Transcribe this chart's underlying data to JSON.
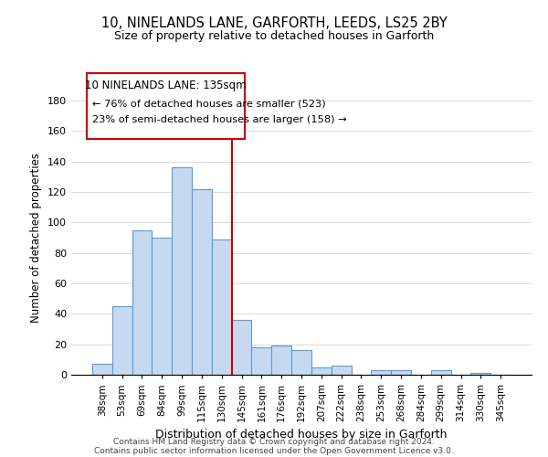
{
  "title": "10, NINELANDS LANE, GARFORTH, LEEDS, LS25 2BY",
  "subtitle": "Size of property relative to detached houses in Garforth",
  "xlabel": "Distribution of detached houses by size in Garforth",
  "ylabel": "Number of detached properties",
  "bar_labels": [
    "38sqm",
    "53sqm",
    "69sqm",
    "84sqm",
    "99sqm",
    "115sqm",
    "130sqm",
    "145sqm",
    "161sqm",
    "176sqm",
    "192sqm",
    "207sqm",
    "222sqm",
    "238sqm",
    "253sqm",
    "268sqm",
    "284sqm",
    "299sqm",
    "314sqm",
    "330sqm",
    "345sqm"
  ],
  "bar_values": [
    7,
    45,
    95,
    90,
    136,
    122,
    89,
    36,
    18,
    19,
    16,
    5,
    6,
    0,
    3,
    3,
    0,
    3,
    0,
    1,
    0
  ],
  "bar_color": "#c6d9f0",
  "bar_edge_color": "#5b9bd5",
  "vline_x": 6.5,
  "vline_color": "#cc0000",
  "ylim": [
    0,
    180
  ],
  "yticks": [
    0,
    20,
    40,
    60,
    80,
    100,
    120,
    140,
    160,
    180
  ],
  "annotation_title": "10 NINELANDS LANE: 135sqm",
  "annotation_line1": "← 76% of detached houses are smaller (523)",
  "annotation_line2": "23% of semi-detached houses are larger (158) →",
  "annotation_box_color": "#ffffff",
  "annotation_box_edge": "#cc0000",
  "footer1": "Contains HM Land Registry data © Crown copyright and database right 2024.",
  "footer2": "Contains public sector information licensed under the Open Government Licence v3.0."
}
